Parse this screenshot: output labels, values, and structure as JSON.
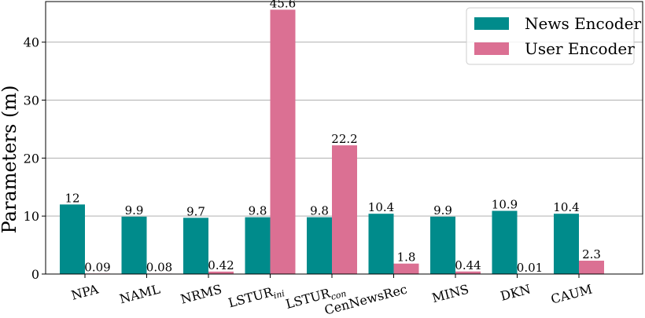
{
  "chart_data": {
    "type": "bar",
    "title": "",
    "xlabel": "",
    "ylabel": "Parameters (m)",
    "ylim": [
      0,
      47
    ],
    "yticks": [
      0,
      10,
      20,
      30,
      40
    ],
    "grid": "horizontal",
    "legend_position": "top-right",
    "categories": [
      {
        "base": "NPA",
        "sub": ""
      },
      {
        "base": "NAML",
        "sub": ""
      },
      {
        "base": "NRMS",
        "sub": ""
      },
      {
        "base": "LSTUR",
        "sub": "ini"
      },
      {
        "base": "LSTUR",
        "sub": "con"
      },
      {
        "base": "CenNewsRec",
        "sub": ""
      },
      {
        "base": "MINS",
        "sub": ""
      },
      {
        "base": "DKN",
        "sub": ""
      },
      {
        "base": "CAUM",
        "sub": ""
      }
    ],
    "series": [
      {
        "name": "News Encoder",
        "color": "#008b8b",
        "values": [
          12,
          9.9,
          9.7,
          9.8,
          9.8,
          10.4,
          9.9,
          10.9,
          10.4
        ],
        "labels": [
          "12",
          "9.9",
          "9.7",
          "9.8",
          "9.8",
          "10.4",
          "9.9",
          "10.9",
          "10.4"
        ]
      },
      {
        "name": "User Encoder",
        "color": "#db7093",
        "values": [
          0.09,
          0.08,
          0.42,
          45.6,
          22.2,
          1.8,
          0.44,
          0.01,
          2.3
        ],
        "labels": [
          "0.09",
          "0.08",
          "0.42",
          "45.6",
          "22.2",
          "1.8",
          "0.44",
          "0.01",
          "2.3"
        ]
      }
    ]
  }
}
